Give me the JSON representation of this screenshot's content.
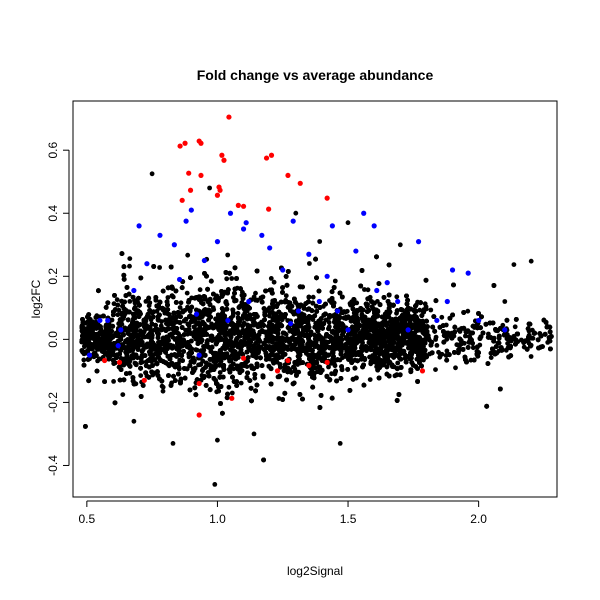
{
  "chart_data": {
    "type": "scatter",
    "title": "Fold change vs average abundance",
    "xlabel": "log2Signal",
    "ylabel": "log2FC",
    "xlim": [
      0.447,
      2.3
    ],
    "ylim": [
      -0.5,
      0.756
    ],
    "xticks": [
      0.5,
      1.0,
      1.5,
      2.0
    ],
    "xtick_labels": [
      "0.5",
      "1.0",
      "1.5",
      "2.0"
    ],
    "yticks": [
      -0.4,
      -0.2,
      0.0,
      0.2,
      0.4,
      0.6
    ],
    "ytick_labels": [
      "-0.4",
      "-0.2",
      "0.0",
      "0.2",
      "0.4",
      "0.6"
    ],
    "grid": false,
    "colors": {
      "background": "#000000",
      "significant_up": "#0000ff",
      "significant_fc": "#ff0000"
    },
    "background_cloud": {
      "description_color": "#000000",
      "n": 9000,
      "x_min": 0.48,
      "x_max": 2.28,
      "seed": 7,
      "outliers": [
        [
          0.75,
          0.525
        ],
        [
          0.83,
          -0.33
        ],
        [
          0.99,
          -0.46
        ],
        [
          1.0,
          -0.32
        ],
        [
          1.47,
          -0.33
        ],
        [
          1.14,
          -0.3
        ],
        [
          0.97,
          0.48
        ],
        [
          1.3,
          0.4
        ],
        [
          2.1,
          0.12
        ],
        [
          0.68,
          -0.26
        ],
        [
          1.5,
          0.37
        ],
        [
          1.7,
          0.3
        ]
      ]
    },
    "series": [
      {
        "name": "blue",
        "color": "#0000ff",
        "points": [
          [
            1.05,
            0.4
          ],
          [
            0.7,
            0.36
          ],
          [
            0.9,
            0.41
          ],
          [
            1.11,
            0.37
          ],
          [
            1.17,
            0.33
          ],
          [
            1.29,
            0.375
          ],
          [
            1.44,
            0.36
          ],
          [
            1.56,
            0.4
          ],
          [
            1.6,
            0.36
          ],
          [
            1.9,
            0.22
          ],
          [
            1.96,
            0.21
          ],
          [
            1.77,
            0.31
          ],
          [
            1.53,
            0.28
          ],
          [
            1.35,
            0.27
          ],
          [
            0.835,
            0.3
          ],
          [
            0.95,
            0.25
          ],
          [
            1.39,
            0.12
          ],
          [
            1.69,
            0.12
          ],
          [
            0.58,
            0.06
          ],
          [
            0.68,
            0.155
          ],
          [
            1.88,
            0.12
          ],
          [
            0.78,
            0.33
          ],
          [
            1.1,
            0.35
          ],
          [
            1.25,
            0.22
          ],
          [
            1.61,
            0.155
          ],
          [
            1.12,
            0.12
          ],
          [
            1.84,
            0.06
          ],
          [
            0.63,
            0.03
          ],
          [
            0.51,
            -0.05
          ],
          [
            0.55,
            0.06
          ],
          [
            0.93,
            -0.05
          ],
          [
            1.5,
            0.03
          ],
          [
            2.0,
            0.06
          ],
          [
            2.1,
            0.03
          ],
          [
            1.31,
            0.09
          ],
          [
            0.855,
            0.19
          ],
          [
            1.04,
            0.06
          ],
          [
            1.73,
            0.03
          ],
          [
            0.88,
            0.375
          ],
          [
            1.0,
            0.31
          ],
          [
            1.2,
            0.29
          ],
          [
            1.42,
            0.2
          ],
          [
            0.73,
            0.24
          ],
          [
            1.65,
            0.18
          ],
          [
            0.92,
            0.08
          ],
          [
            1.28,
            0.05
          ],
          [
            1.46,
            0.09
          ],
          [
            0.62,
            -0.02
          ]
        ]
      },
      {
        "name": "red",
        "color": "#ff0000",
        "points": [
          [
            0.857,
            0.613
          ],
          [
            0.876,
            0.622
          ],
          [
            0.93,
            0.629
          ],
          [
            0.937,
            0.622
          ],
          [
            1.044,
            0.705
          ],
          [
            1.017,
            0.584
          ],
          [
            1.025,
            0.568
          ],
          [
            1.188,
            0.575
          ],
          [
            1.207,
            0.584
          ],
          [
            0.89,
            0.527
          ],
          [
            0.937,
            0.52
          ],
          [
            1.27,
            0.52
          ],
          [
            1.317,
            0.495
          ],
          [
            1.006,
            0.483
          ],
          [
            1.01,
            0.473
          ],
          [
            0.897,
            0.473
          ],
          [
            0.865,
            0.441
          ],
          [
            1.08,
            0.425
          ],
          [
            1.1,
            0.422
          ],
          [
            1.196,
            0.413
          ],
          [
            1.42,
            0.448
          ],
          [
            1.0,
            0.457
          ],
          [
            0.568,
            -0.067
          ],
          [
            0.625,
            -0.073
          ],
          [
            0.72,
            -0.13
          ],
          [
            0.93,
            -0.14
          ],
          [
            0.93,
            -0.24
          ],
          [
            1.055,
            -0.187
          ],
          [
            1.1,
            -0.06
          ],
          [
            1.23,
            -0.1
          ],
          [
            1.27,
            -0.067
          ],
          [
            1.35,
            -0.083
          ],
          [
            1.42,
            -0.073
          ],
          [
            1.785,
            -0.1
          ]
        ]
      }
    ]
  }
}
